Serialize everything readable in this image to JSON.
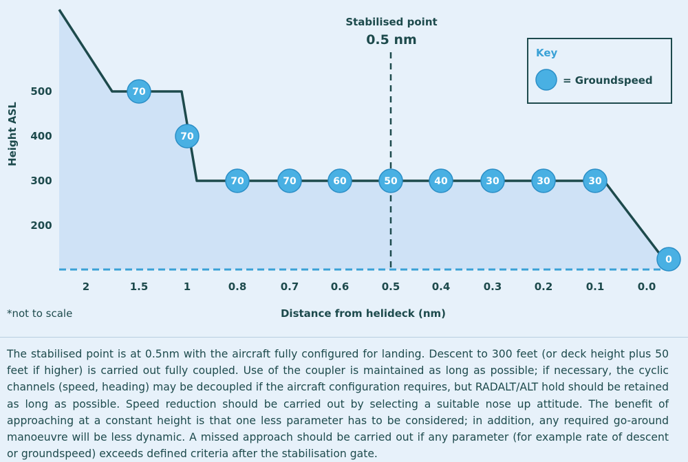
{
  "chart_data": {
    "type": "area",
    "ylabel": "Height ASL",
    "xlabel": "Distance from helideck (nm)",
    "note": "*not to scale",
    "y_ticks": [
      "500",
      "400",
      "300",
      "200"
    ],
    "x_ticks": [
      "2",
      "1.5",
      "1",
      "0.8",
      "0.7",
      "0.6",
      "0.5",
      "0.4",
      "0.3",
      "0.2",
      "0.1",
      "0.0"
    ],
    "profile": [
      {
        "x": "2",
        "y": 680
      },
      {
        "x": "1.5",
        "y": 500
      },
      {
        "x": "1",
        "y": 500
      },
      {
        "x": "1",
        "y": 300
      },
      {
        "x": "0.1",
        "y": 300
      },
      {
        "x": "0.0",
        "y": 110
      }
    ],
    "groundspeed_points": [
      {
        "x": "1.5",
        "y": 500,
        "value": "70"
      },
      {
        "x": "1",
        "y": 400,
        "value": "70"
      },
      {
        "x": "0.8",
        "y": 300,
        "value": "70"
      },
      {
        "x": "0.7",
        "y": 300,
        "value": "70"
      },
      {
        "x": "0.6",
        "y": 300,
        "value": "60"
      },
      {
        "x": "0.5",
        "y": 300,
        "value": "50"
      },
      {
        "x": "0.4",
        "y": 300,
        "value": "40"
      },
      {
        "x": "0.3",
        "y": 300,
        "value": "30"
      },
      {
        "x": "0.2",
        "y": 300,
        "value": "30"
      },
      {
        "x": "0.1",
        "y": 300,
        "value": "30"
      },
      {
        "x": "0.0",
        "y": 110,
        "value": "0"
      }
    ],
    "stabilised_point": {
      "label": "Stabilised point",
      "value": "0.5 nm",
      "x": "0.5"
    },
    "key": {
      "title": "Key",
      "label": "= Groundspeed"
    },
    "colors": {
      "line": "#1d4a4c",
      "fill": "#cfe2f6",
      "badge": "#49b0e3",
      "badge_stroke": "#2b8ec6",
      "dash": "#3aa1d6"
    }
  },
  "caption": "The stabilised point is at 0.5nm with the aircraft fully configured for landing. Descent to 300 feet (or deck height plus 50 feet if higher) is carried out fully coupled. Use of the coupler is maintained as long as possible; if necessary, the cyclic channels (speed, heading) may be decoupled if the aircraft configuration requires, but RADALT/ALT hold should be retained as long as possible. Speed reduction should be carried out by selecting a suitable nose up attitude. The benefit of approaching at a constant height is that one less parameter has to be considered; in addition, any required go-around manoeuvre will be less dynamic. A missed approach should be carried out if any parameter (for example rate of descent or groundspeed) exceeds defined criteria after the stabilisation gate."
}
